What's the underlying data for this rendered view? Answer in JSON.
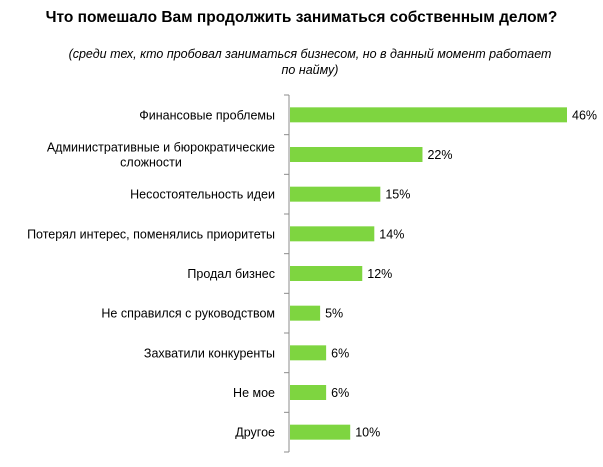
{
  "chart_data": {
    "type": "bar",
    "orientation": "horizontal",
    "title": "Что помешало Вам продолжить заниматься собственным делом?",
    "subtitle": "(среди тех, кто пробовал заниматься бизнесом, но в данный момент работает по найму)",
    "categories": [
      "Финансовые проблемы",
      "Административные и бюрократические сложности",
      "Несостоятельность идеи",
      "Потерял интерес, поменялись приоритеты",
      "Продал бизнес",
      "Не справился с руководством",
      "Захватили конкуренты",
      "Не мое",
      "Другое"
    ],
    "values": [
      46,
      22,
      15,
      14,
      12,
      5,
      6,
      6,
      10
    ],
    "value_labels": [
      "46%",
      "22%",
      "15%",
      "14%",
      "12%",
      "5%",
      "6%",
      "6%",
      "10%"
    ],
    "unit": "%",
    "xlim": [
      0,
      50
    ],
    "grid": false,
    "legend": "none",
    "bar_color": "#7ED540",
    "axis_color": "#8c8c8c"
  }
}
